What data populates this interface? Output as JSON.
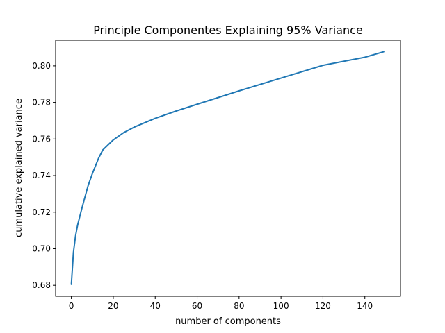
{
  "chart_data": {
    "type": "line",
    "title": "Principle Componentes Explaining 95% Variance",
    "xlabel": "number of components",
    "ylabel": "cumulative explained variance",
    "xlim": [
      -7.5,
      157
    ],
    "ylim": [
      0.674,
      0.814
    ],
    "xticks": [
      0,
      20,
      40,
      60,
      80,
      100,
      120,
      140
    ],
    "yticks": [
      0.68,
      0.7,
      0.72,
      0.74,
      0.76,
      0.78,
      0.8
    ],
    "ytick_labels": [
      "0.68",
      "0.70",
      "0.72",
      "0.74",
      "0.76",
      "0.78",
      "0.80"
    ],
    "grid": false,
    "series": [
      {
        "color": "#1f77b4",
        "x": [
          0,
          1,
          2,
          3,
          5,
          8,
          10,
          13,
          15,
          20,
          25,
          30,
          40,
          50,
          60,
          80,
          100,
          120,
          140,
          149
        ],
        "y": [
          0.6805,
          0.698,
          0.707,
          0.713,
          0.722,
          0.7345,
          0.741,
          0.7495,
          0.754,
          0.7595,
          0.7635,
          0.7665,
          0.7713,
          0.7753,
          0.779,
          0.7863,
          0.7933,
          0.8003,
          0.8047,
          0.8077
        ]
      }
    ]
  }
}
